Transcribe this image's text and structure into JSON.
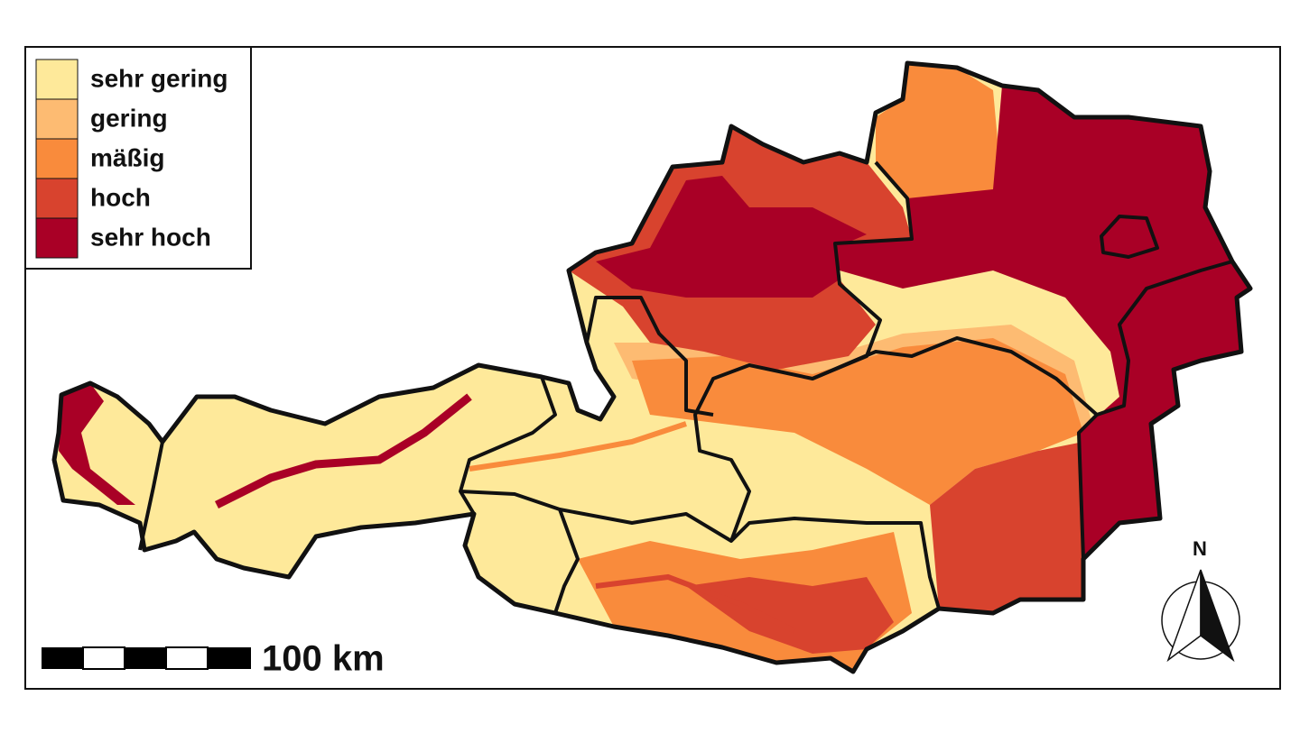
{
  "legend": {
    "items": [
      {
        "label": "sehr gering",
        "color": "#fee99a"
      },
      {
        "label": "gering",
        "color": "#fdbb72"
      },
      {
        "label": "mäßig",
        "color": "#f98b3c"
      },
      {
        "label": "hoch",
        "color": "#d8432e"
      },
      {
        "label": "sehr hoch",
        "color": "#a90026"
      }
    ]
  },
  "scale_bar": {
    "label": "100 km"
  },
  "north_arrow": {
    "label": "N"
  }
}
